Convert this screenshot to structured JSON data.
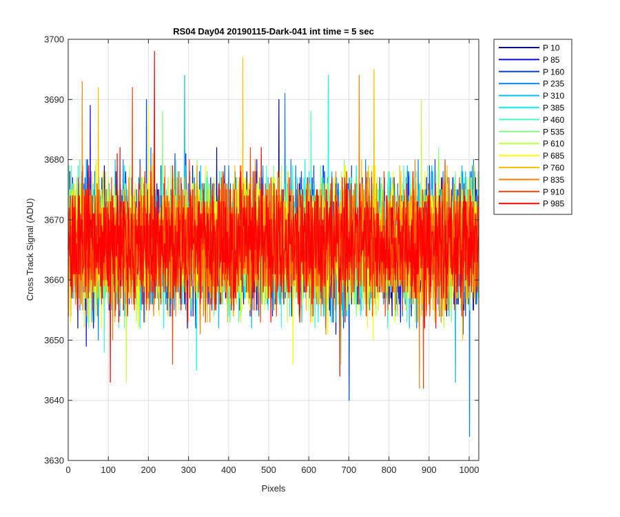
{
  "chart_data": {
    "type": "line",
    "title": "RS04 Day04 20190115-Dark-041 int time = 5 sec",
    "xlabel": "Pixels",
    "ylabel": "Cross Track Signal (ADU)",
    "xlim": [
      0,
      1024
    ],
    "ylim": [
      3630,
      3700
    ],
    "xticks": [
      0,
      100,
      200,
      300,
      400,
      500,
      600,
      700,
      800,
      900,
      1000
    ],
    "yticks": [
      3630,
      3640,
      3650,
      3660,
      3670,
      3680,
      3690,
      3700
    ],
    "grid": true,
    "legend_position": "outside-right",
    "noise_model": {
      "samples_per_series": 1024,
      "mean": 3666,
      "typical_range": [
        3650,
        3683
      ]
    },
    "series": [
      {
        "name": "P 10",
        "color": "#00008f",
        "extremes": [
          {
            "x": 525,
            "y": 3690
          }
        ]
      },
      {
        "name": "P 85",
        "color": "#0000ff",
        "extremes": [
          {
            "x": 55,
            "y": 3689
          },
          {
            "x": 45,
            "y": 3649
          }
        ]
      },
      {
        "name": "P 160",
        "color": "#0040ff",
        "extremes": [
          {
            "x": 700,
            "y": 3640
          },
          {
            "x": 195,
            "y": 3690
          }
        ]
      },
      {
        "name": "P 235",
        "color": "#0080ff",
        "extremes": [
          {
            "x": 1000,
            "y": 3634
          },
          {
            "x": 540,
            "y": 3691
          }
        ]
      },
      {
        "name": "P 310",
        "color": "#00bfff",
        "extremes": [
          {
            "x": 290,
            "y": 3694
          },
          {
            "x": 965,
            "y": 3643
          }
        ]
      },
      {
        "name": "P 385",
        "color": "#00ffff",
        "extremes": [
          {
            "x": 648,
            "y": 3694
          },
          {
            "x": 320,
            "y": 3645
          }
        ]
      },
      {
        "name": "P 460",
        "color": "#40ffbf",
        "extremes": [
          {
            "x": 605,
            "y": 3688
          },
          {
            "x": 90,
            "y": 3648
          }
        ]
      },
      {
        "name": "P 535",
        "color": "#80ff80",
        "extremes": [
          {
            "x": 235,
            "y": 3688
          },
          {
            "x": 680,
            "y": 3646
          }
        ]
      },
      {
        "name": "P 610",
        "color": "#bfff40",
        "extremes": [
          {
            "x": 880,
            "y": 3690
          },
          {
            "x": 145,
            "y": 3643
          }
        ]
      },
      {
        "name": "P 685",
        "color": "#ffff00",
        "extremes": [
          {
            "x": 200,
            "y": 3689
          },
          {
            "x": 560,
            "y": 3646
          }
        ]
      },
      {
        "name": "P 760",
        "color": "#ffbf00",
        "extremes": [
          {
            "x": 435,
            "y": 3697
          },
          {
            "x": 762,
            "y": 3695
          },
          {
            "x": 75,
            "y": 3692
          }
        ]
      },
      {
        "name": "P 835",
        "color": "#ff8000",
        "extremes": [
          {
            "x": 35,
            "y": 3693
          },
          {
            "x": 725,
            "y": 3694
          },
          {
            "x": 875,
            "y": 3642
          }
        ]
      },
      {
        "name": "P 910",
        "color": "#ff4000",
        "extremes": [
          {
            "x": 160,
            "y": 3692
          },
          {
            "x": 885,
            "y": 3642
          },
          {
            "x": 260,
            "y": 3646
          }
        ]
      },
      {
        "name": "P 985",
        "color": "#ff0000",
        "extremes": [
          {
            "x": 215,
            "y": 3698
          },
          {
            "x": 105,
            "y": 3643
          },
          {
            "x": 677,
            "y": 3644
          }
        ]
      }
    ]
  }
}
